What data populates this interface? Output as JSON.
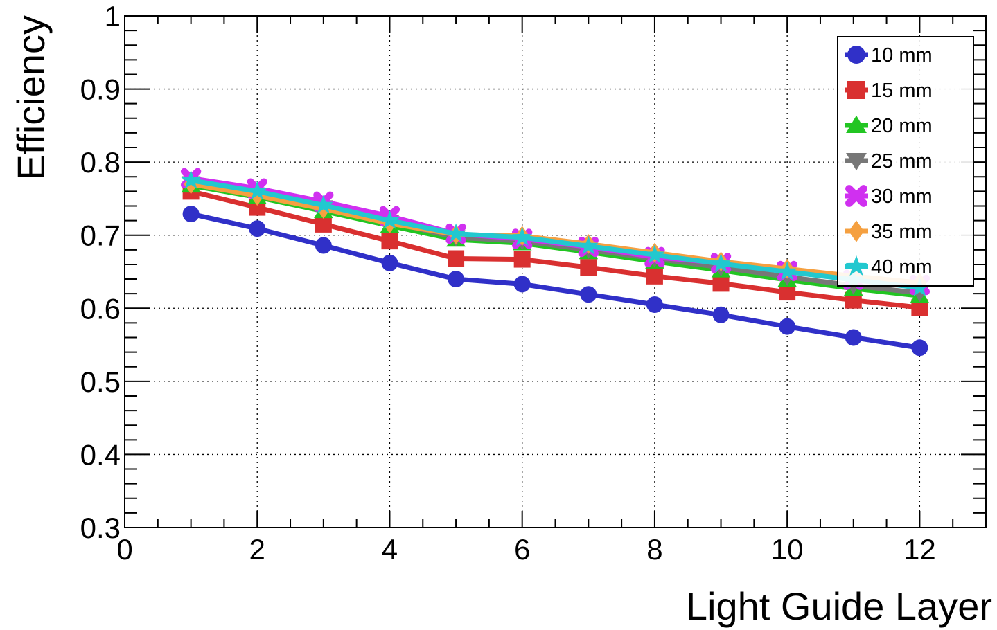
{
  "chart_data": {
    "type": "line",
    "xlabel": "Light Guide Layer",
    "ylabel": "Efficiency",
    "xlim": [
      0,
      13
    ],
    "ylim": [
      0.3,
      1.0
    ],
    "x_ticks": [
      "0",
      "2",
      "4",
      "6",
      "8",
      "10",
      "12"
    ],
    "y_ticks": [
      "0.3",
      "0.4",
      "0.5",
      "0.6",
      "0.7",
      "0.8",
      "0.9",
      "1"
    ],
    "grid": true,
    "legend_position": "top-right",
    "x": [
      1,
      2,
      3,
      4,
      5,
      6,
      7,
      8,
      9,
      10,
      11,
      12
    ],
    "series": [
      {
        "name": "10 mm",
        "color": "#3030c8",
        "marker": "circle",
        "values": [
          0.729,
          0.709,
          0.686,
          0.662,
          0.64,
          0.633,
          0.619,
          0.605,
          0.591,
          0.575,
          0.56,
          0.546
        ]
      },
      {
        "name": "15 mm",
        "color": "#d93030",
        "marker": "square",
        "values": [
          0.76,
          0.738,
          0.715,
          0.692,
          0.668,
          0.667,
          0.656,
          0.644,
          0.634,
          0.622,
          0.611,
          0.601
        ]
      },
      {
        "name": "20 mm",
        "color": "#22c522",
        "marker": "triangle-up",
        "values": [
          0.768,
          0.752,
          0.733,
          0.713,
          0.694,
          0.689,
          0.677,
          0.664,
          0.652,
          0.639,
          0.627,
          0.617
        ]
      },
      {
        "name": "25 mm",
        "color": "#777777",
        "marker": "triangle-down",
        "values": [
          0.771,
          0.755,
          0.738,
          0.718,
          0.697,
          0.692,
          0.68,
          0.668,
          0.656,
          0.643,
          0.631,
          0.621
        ]
      },
      {
        "name": "30 mm",
        "color": "#d030f0",
        "marker": "x-cross",
        "values": [
          0.778,
          0.764,
          0.746,
          0.726,
          0.702,
          0.695,
          0.684,
          0.67,
          0.662,
          0.651,
          0.639,
          0.632
        ]
      },
      {
        "name": "35 mm",
        "color": "#f5a040",
        "marker": "diamond",
        "values": [
          0.77,
          0.754,
          0.736,
          0.716,
          0.701,
          0.699,
          0.688,
          0.676,
          0.664,
          0.654,
          0.644,
          0.635
        ]
      },
      {
        "name": "40 mm",
        "color": "#22c8cf",
        "marker": "star",
        "values": [
          0.775,
          0.76,
          0.741,
          0.72,
          0.702,
          0.697,
          0.685,
          0.673,
          0.661,
          0.65,
          0.639,
          0.628
        ]
      }
    ]
  }
}
